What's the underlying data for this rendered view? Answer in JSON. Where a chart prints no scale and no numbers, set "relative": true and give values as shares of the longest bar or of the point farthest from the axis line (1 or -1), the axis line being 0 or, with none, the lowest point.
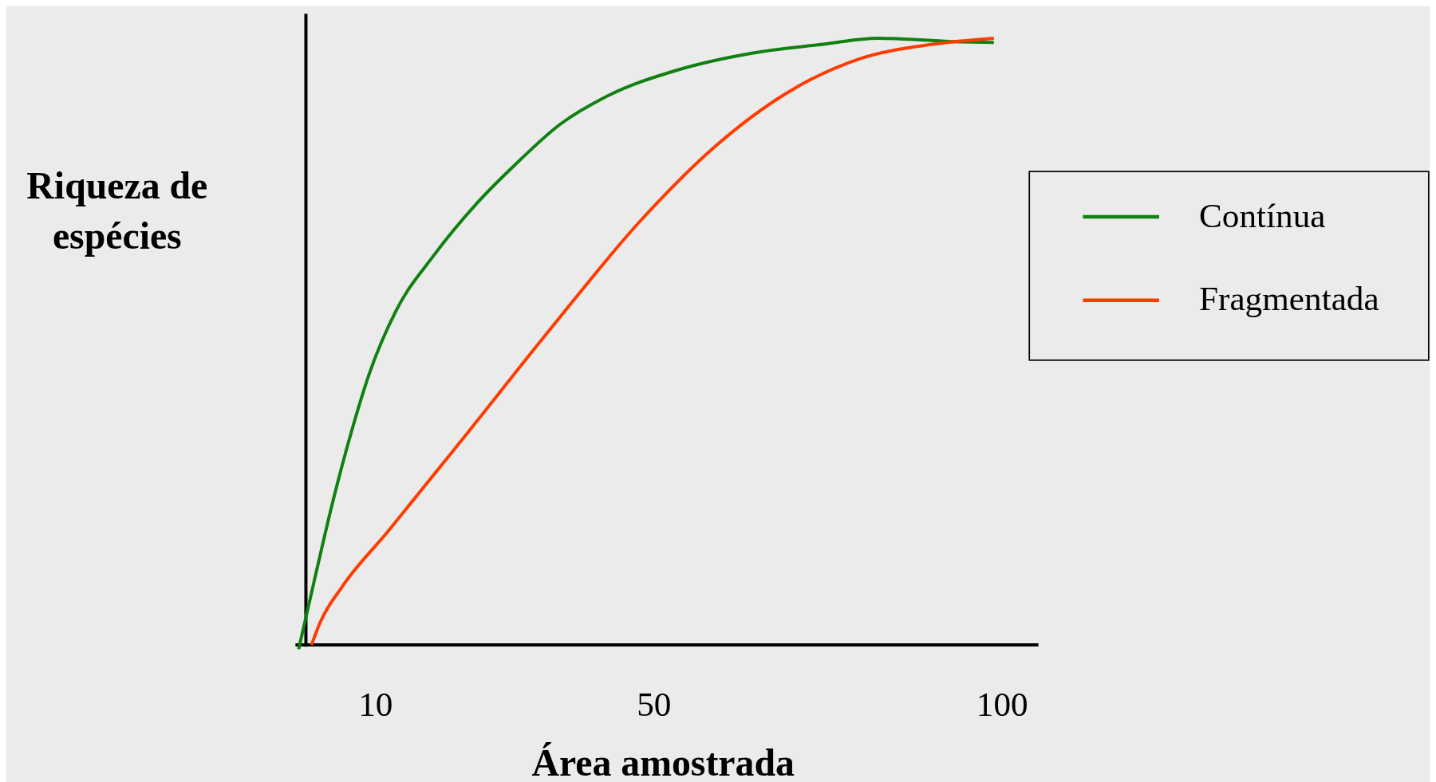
{
  "chart_data": {
    "type": "line",
    "relative": true,
    "xlabel": "Área amostrada",
    "ylabel": "Riqueza de espécies",
    "xlim": [
      -1.5,
      105.2
    ],
    "xticks": [
      10,
      50,
      100
    ],
    "legend": "right",
    "grid": false,
    "marker": "none",
    "line_style": "solid",
    "series": [
      {
        "name": "Contínua",
        "color": "#108010",
        "x": [
          -1.04,
          1.3,
          3.9,
          6.5,
          9.1,
          13.0,
          18.3,
          24.8,
          30.0,
          36.5,
          43.0,
          53.5,
          63.9,
          74.3,
          82.1,
          93.9,
          98.8
        ],
        "values": [
          -0.007,
          0.111,
          0.238,
          0.35,
          0.447,
          0.552,
          0.641,
          0.731,
          0.791,
          0.858,
          0.903,
          0.948,
          0.975,
          0.99,
          1.0,
          0.994,
          0.993
        ]
      },
      {
        "name": "Fragmentada",
        "color": "#ff3c00",
        "x": [
          0.8,
          2.0,
          5.2,
          11.7,
          22.2,
          35.2,
          48.2,
          58.7,
          69.1,
          79.5,
          90.0,
          98.8
        ],
        "values": [
          0,
          0.036,
          0.096,
          0.186,
          0.335,
          0.522,
          0.701,
          0.821,
          0.91,
          0.966,
          0.99,
          1.0
        ]
      }
    ]
  }
}
